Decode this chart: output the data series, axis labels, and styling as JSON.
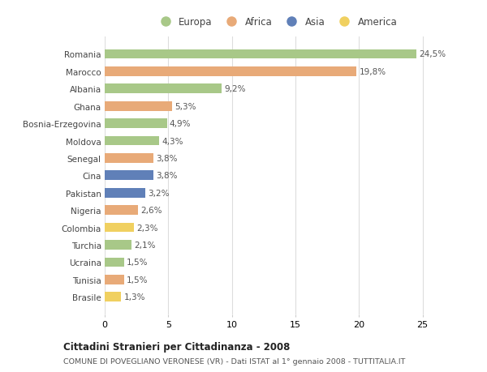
{
  "categories": [
    "Romania",
    "Marocco",
    "Albania",
    "Ghana",
    "Bosnia-Erzegovina",
    "Moldova",
    "Senegal",
    "Cina",
    "Pakistan",
    "Nigeria",
    "Colombia",
    "Turchia",
    "Ucraina",
    "Tunisia",
    "Brasile"
  ],
  "values": [
    24.5,
    19.8,
    9.2,
    5.3,
    4.9,
    4.3,
    3.8,
    3.8,
    3.2,
    2.6,
    2.3,
    2.1,
    1.5,
    1.5,
    1.3
  ],
  "labels": [
    "24,5%",
    "19,8%",
    "9,2%",
    "5,3%",
    "4,9%",
    "4,3%",
    "3,8%",
    "3,8%",
    "3,2%",
    "2,6%",
    "2,3%",
    "2,1%",
    "1,5%",
    "1,5%",
    "1,3%"
  ],
  "continents": [
    "Europa",
    "Africa",
    "Europa",
    "Africa",
    "Europa",
    "Europa",
    "Africa",
    "Asia",
    "Asia",
    "Africa",
    "America",
    "Europa",
    "Europa",
    "Africa",
    "America"
  ],
  "colors": {
    "Europa": "#a8c888",
    "Africa": "#e8aa78",
    "Asia": "#6080b8",
    "America": "#f0d060"
  },
  "xlim": [
    0,
    27
  ],
  "xticks": [
    0,
    5,
    10,
    15,
    20,
    25
  ],
  "title": "Cittadini Stranieri per Cittadinanza - 2008",
  "subtitle": "COMUNE DI POVEGLIANO VERONESE (VR) - Dati ISTAT al 1° gennaio 2008 - TUTTITALIA.IT",
  "background_color": "#ffffff",
  "grid_color": "#dddddd",
  "label_color": "#555555",
  "text_color": "#444444"
}
